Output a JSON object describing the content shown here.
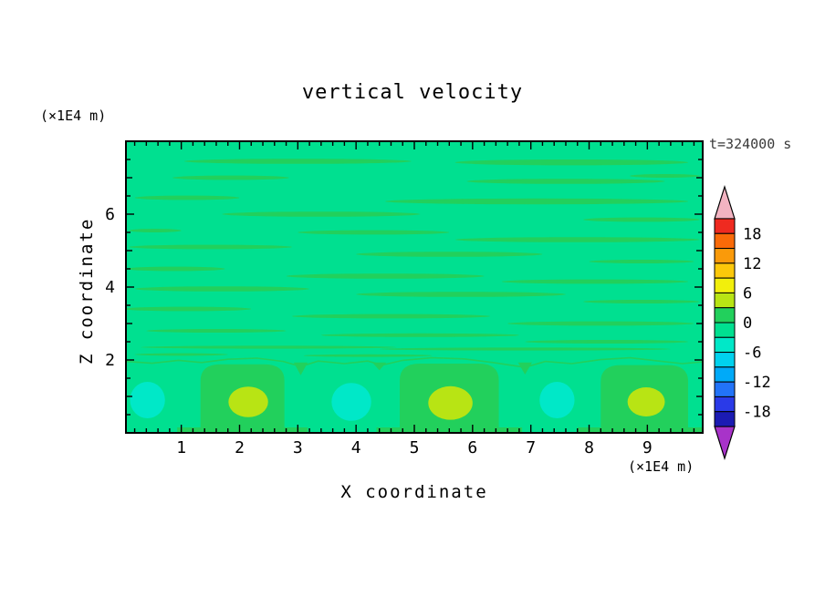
{
  "chart_data": {
    "type": "contour",
    "title": "vertical velocity",
    "time_label": "t=324000 s",
    "xlabel": "X coordinate",
    "ylabel": "Z coordinate",
    "x_unit_label": "(×1E4 m)",
    "z_unit_label": "(×1E4 m)",
    "xlim": [
      0.05,
      9.95
    ],
    "zlim": [
      0,
      8
    ],
    "x_ticks": [
      "1",
      "2",
      "3",
      "4",
      "5",
      "6",
      "7",
      "8",
      "9"
    ],
    "x_tick_values": [
      1,
      2,
      3,
      4,
      5,
      6,
      7,
      8,
      9
    ],
    "z_ticks": [
      "2",
      "4",
      "6"
    ],
    "z_tick_values": [
      2,
      4,
      6
    ],
    "x_minor_step": 0.2,
    "z_minor_step": 0.5,
    "grid": false,
    "colorbar": {
      "labels": [
        "18",
        "12",
        "6",
        "0",
        "-6",
        "-12",
        "-18"
      ],
      "level_min": -21,
      "level_max": 21,
      "level_step": 3,
      "band_colors_bottom_to_top": [
        "#1b1bb3",
        "#2a3ae8",
        "#2273f8",
        "#00aaf8",
        "#00d2ee",
        "#00e8c8",
        "#00e090",
        "#22d05c",
        "#b8e414",
        "#f2ef0c",
        "#fcc80a",
        "#fa9a0a",
        "#fa6a08",
        "#ef2a20"
      ],
      "top_arrow_color": "#f2b3c1",
      "bottom_arrow_color": "#a833c9"
    },
    "field": {
      "background_color": "#00e090",
      "positive_color": "#22d05c",
      "core_color": "#b8e414",
      "negative_color": "#00e8c8",
      "streaks": [
        [
          3.0,
          7.45,
          1.95,
          0.07
        ],
        [
          7.7,
          7.42,
          2.0,
          0.08
        ],
        [
          1.85,
          7.0,
          1.0,
          0.06
        ],
        [
          9.3,
          7.05,
          0.6,
          0.05
        ],
        [
          7.6,
          6.9,
          1.7,
          0.07
        ],
        [
          1.1,
          6.45,
          0.9,
          0.06
        ],
        [
          7.1,
          6.35,
          2.6,
          0.08
        ],
        [
          3.4,
          6.0,
          1.7,
          0.07
        ],
        [
          8.9,
          5.85,
          1.0,
          0.06
        ],
        [
          0.55,
          5.55,
          0.45,
          0.05
        ],
        [
          4.3,
          5.5,
          1.3,
          0.06
        ],
        [
          7.8,
          5.3,
          2.1,
          0.07
        ],
        [
          1.5,
          5.1,
          1.4,
          0.06
        ],
        [
          5.6,
          4.9,
          1.6,
          0.07
        ],
        [
          8.9,
          4.7,
          0.9,
          0.05
        ],
        [
          0.9,
          4.5,
          0.85,
          0.06
        ],
        [
          4.5,
          4.3,
          1.7,
          0.07
        ],
        [
          8.1,
          4.15,
          1.6,
          0.06
        ],
        [
          1.7,
          3.95,
          1.5,
          0.07
        ],
        [
          5.8,
          3.8,
          1.8,
          0.07
        ],
        [
          8.9,
          3.6,
          1.0,
          0.05
        ],
        [
          1.1,
          3.4,
          1.1,
          0.06
        ],
        [
          4.6,
          3.2,
          1.7,
          0.06
        ],
        [
          8.2,
          3.0,
          1.6,
          0.06
        ],
        [
          1.6,
          2.8,
          1.2,
          0.05
        ],
        [
          5.1,
          2.68,
          1.7,
          0.05
        ],
        [
          8.3,
          2.5,
          1.4,
          0.05
        ],
        [
          2.5,
          2.35,
          2.2,
          0.04
        ],
        [
          6.9,
          2.3,
          2.5,
          0.04
        ],
        [
          1.0,
          2.15,
          0.8,
          0.035
        ],
        [
          4.2,
          2.12,
          1.1,
          0.035
        ]
      ],
      "boundary": [
        [
          0.05,
          1.96
        ],
        [
          0.5,
          1.91
        ],
        [
          0.95,
          1.99
        ],
        [
          1.35,
          1.93
        ],
        [
          1.8,
          2.02
        ],
        [
          2.3,
          2.05
        ],
        [
          2.75,
          1.96
        ],
        [
          3.05,
          1.82
        ],
        [
          3.35,
          1.97
        ],
        [
          3.8,
          1.9
        ],
        [
          4.2,
          1.97
        ],
        [
          4.45,
          1.86
        ],
        [
          4.8,
          1.99
        ],
        [
          5.3,
          2.06
        ],
        [
          5.85,
          2.03
        ],
        [
          6.35,
          1.93
        ],
        [
          6.9,
          1.8
        ],
        [
          7.25,
          1.96
        ],
        [
          7.7,
          1.9
        ],
        [
          8.2,
          2.01
        ],
        [
          8.7,
          2.06
        ],
        [
          9.2,
          1.97
        ],
        [
          9.6,
          1.9
        ],
        [
          9.95,
          1.95
        ]
      ],
      "spikes": [
        [
          3.05,
          1.58
        ],
        [
          4.4,
          1.72
        ],
        [
          6.9,
          1.6
        ]
      ],
      "updrafts": [
        [
          2.05,
          0.72,
          1.88
        ],
        [
          5.6,
          0.85,
          1.9
        ],
        [
          8.95,
          0.75,
          1.86
        ]
      ],
      "cores": [
        [
          2.15,
          0.85,
          0.34,
          0.42
        ],
        [
          5.62,
          0.82,
          0.38,
          0.46
        ],
        [
          8.98,
          0.85,
          0.32,
          0.4
        ]
      ],
      "downdrafts": [
        [
          0.42,
          0.9,
          0.3,
          0.5
        ],
        [
          3.92,
          0.85,
          0.34,
          0.52
        ],
        [
          7.45,
          0.9,
          0.3,
          0.5
        ]
      ]
    }
  }
}
